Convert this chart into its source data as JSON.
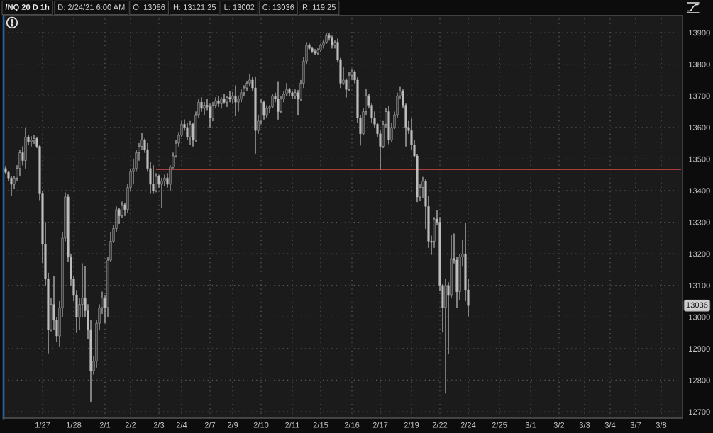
{
  "chart_data": {
    "type": "candlestick",
    "title": "/NQ 20 D 1h",
    "annotations": [
      "D: 2/24/21 6:00 AM",
      "O: 13086",
      "H: 13121.25",
      "L: 13002",
      "C: 13036",
      "R: 119.25",
      {
        "text": "13036",
        "y": 13036
      }
    ],
    "color": "#bdbdbd",
    "categories": [
      null,
      null,
      null,
      null,
      null,
      null,
      null,
      null,
      null,
      null,
      null,
      null,
      null,
      "1/27",
      null,
      null,
      null,
      null,
      null,
      null,
      null,
      null,
      null,
      null,
      "1/28",
      null,
      null,
      null,
      null,
      null,
      null,
      null,
      null,
      null,
      null,
      "2/1",
      null,
      null,
      null,
      null,
      null,
      null,
      null,
      null,
      "2/2",
      null,
      null,
      null,
      null,
      null,
      null,
      null,
      null,
      null,
      "2/3",
      null,
      null,
      null,
      null,
      null,
      null,
      null,
      "2/4",
      null,
      null,
      null,
      null,
      null,
      null,
      null,
      null,
      null,
      "2/7",
      null,
      null,
      null,
      null,
      null,
      null,
      null,
      "2/9",
      null,
      null,
      null,
      null,
      null,
      null,
      null,
      null,
      null,
      "2/10",
      null,
      null,
      null,
      null,
      null,
      null,
      null,
      null,
      null,
      null,
      "2/11",
      null,
      null,
      null,
      null,
      null,
      null,
      null,
      null,
      null,
      "2/15",
      null,
      null,
      null,
      null,
      null,
      null,
      null,
      null,
      null,
      null,
      "2/16",
      null,
      null,
      null,
      null,
      null,
      null,
      null,
      null,
      null,
      "2/17",
      null,
      null,
      null,
      null,
      null,
      null,
      null,
      null,
      null,
      null,
      "2/19",
      null,
      null,
      null,
      null,
      null,
      null,
      null,
      null,
      null,
      "2/22",
      null,
      null,
      null,
      null,
      null,
      null,
      null,
      null,
      null,
      "2/24",
      null,
      null,
      null,
      null,
      null,
      null,
      null,
      null,
      null,
      null,
      "2/25",
      null,
      null,
      null,
      null,
      null,
      null,
      null,
      null,
      null,
      null,
      "3/1",
      null,
      null,
      null,
      null,
      null,
      null,
      null,
      null,
      null,
      "3/2",
      null,
      null,
      null,
      null,
      null,
      null,
      null,
      null,
      "3/3",
      null,
      null,
      null,
      null,
      null,
      null,
      null,
      null,
      "3/4",
      null,
      null,
      null,
      null,
      null,
      null,
      null,
      null,
      "3/7",
      null,
      null,
      null,
      null,
      null,
      null,
      null,
      null,
      "3/8",
      null,
      null,
      null,
      null,
      null,
      null,
      null
    ],
    "ohlc": [
      [
        13470,
        13478,
        13452,
        13458
      ],
      [
        13458,
        13462,
        13430,
        13440
      ],
      [
        13440,
        13445,
        13383,
        13420
      ],
      [
        13420,
        13445,
        13405,
        13440
      ],
      [
        13440,
        13480,
        13430,
        13470
      ],
      [
        13470,
        13530,
        13445,
        13520
      ],
      [
        13520,
        13540,
        13480,
        13495
      ],
      [
        13495,
        13600,
        13470,
        13570
      ],
      [
        13570,
        13575,
        13545,
        13555
      ],
      [
        13555,
        13572,
        13540,
        13560
      ],
      [
        13560,
        13575,
        13548,
        13565
      ],
      [
        13565,
        13570,
        13535,
        13540
      ],
      [
        13540,
        13545,
        13370,
        13390
      ],
      [
        13390,
        13398,
        13171,
        13230
      ],
      [
        13230,
        13300,
        13100,
        13120
      ],
      [
        13120,
        13140,
        12885,
        12960
      ],
      [
        12960,
        13060,
        12955,
        13040
      ],
      [
        13040,
        13130,
        12960,
        12990
      ],
      [
        12990,
        13000,
        12920,
        12940
      ],
      [
        12940,
        13050,
        12907,
        13030
      ],
      [
        13030,
        13270,
        13000,
        13250
      ],
      [
        13250,
        13394,
        13240,
        13380
      ],
      [
        13380,
        13388,
        13175,
        13190
      ],
      [
        13190,
        13200,
        13100,
        13120
      ],
      [
        13120,
        13130,
        13050,
        13070
      ],
      [
        13070,
        13085,
        12950,
        13000
      ],
      [
        13000,
        13060,
        12960,
        13040
      ],
      [
        13040,
        13170,
        13000,
        13060
      ],
      [
        13060,
        13160,
        13000,
        13020
      ],
      [
        13020,
        13040,
        12930,
        12960
      ],
      [
        12960,
        12990,
        12732,
        12830
      ],
      [
        12830,
        12877,
        12818,
        12860
      ],
      [
        12860,
        12990,
        12840,
        12980
      ],
      [
        12980,
        13040,
        12960,
        13030
      ],
      [
        13030,
        13080,
        13010,
        13060
      ],
      [
        13060,
        13070,
        12980,
        13030
      ],
      [
        13030,
        13190,
        13000,
        13180
      ],
      [
        13180,
        13270,
        13175,
        13240
      ],
      [
        13240,
        13290,
        13235,
        13280
      ],
      [
        13280,
        13350,
        13270,
        13340
      ],
      [
        13340,
        13345,
        13295,
        13320
      ],
      [
        13320,
        13365,
        13315,
        13355
      ],
      [
        13355,
        13360,
        13320,
        13340
      ],
      [
        13340,
        13420,
        13330,
        13410
      ],
      [
        13410,
        13470,
        13400,
        13460
      ],
      [
        13460,
        13500,
        13420,
        13470
      ],
      [
        13470,
        13530,
        13460,
        13520
      ],
      [
        13520,
        13550,
        13495,
        13540
      ],
      [
        13540,
        13582,
        13530,
        13560
      ],
      [
        13560,
        13565,
        13520,
        13530
      ],
      [
        13530,
        13550,
        13460,
        13470
      ],
      [
        13470,
        13490,
        13390,
        13420
      ],
      [
        13420,
        13480,
        13390,
        13400
      ],
      [
        13400,
        13455,
        13395,
        13445
      ],
      [
        13445,
        13450,
        13410,
        13420
      ],
      [
        13420,
        13440,
        13346,
        13430
      ],
      [
        13430,
        13450,
        13415,
        13440
      ],
      [
        13440,
        13455,
        13410,
        13420
      ],
      [
        13420,
        13480,
        13400,
        13475
      ],
      [
        13475,
        13520,
        13470,
        13510
      ],
      [
        13510,
        13560,
        13505,
        13550
      ],
      [
        13550,
        13585,
        13540,
        13575
      ],
      [
        13575,
        13620,
        13570,
        13610
      ],
      [
        13610,
        13625,
        13590,
        13600
      ],
      [
        13600,
        13615,
        13560,
        13570
      ],
      [
        13570,
        13620,
        13545,
        13610
      ],
      [
        13610,
        13615,
        13540,
        13560
      ],
      [
        13560,
        13650,
        13555,
        13640
      ],
      [
        13640,
        13690,
        13630,
        13680
      ],
      [
        13680,
        13695,
        13650,
        13660
      ],
      [
        13660,
        13680,
        13640,
        13670
      ],
      [
        13670,
        13690,
        13655,
        13665
      ],
      [
        13665,
        13675,
        13600,
        13630
      ],
      [
        13630,
        13680,
        13620,
        13670
      ],
      [
        13670,
        13695,
        13660,
        13685
      ],
      [
        13685,
        13700,
        13665,
        13675
      ],
      [
        13675,
        13695,
        13660,
        13690
      ],
      [
        13690,
        13705,
        13675,
        13680
      ],
      [
        13680,
        13700,
        13665,
        13695
      ],
      [
        13695,
        13715,
        13680,
        13690
      ],
      [
        13690,
        13712,
        13675,
        13700
      ],
      [
        13700,
        13733,
        13636,
        13680
      ],
      [
        13680,
        13700,
        13650,
        13690
      ],
      [
        13690,
        13720,
        13680,
        13710
      ],
      [
        13710,
        13733,
        13700,
        13725
      ],
      [
        13725,
        13747,
        13715,
        13740
      ],
      [
        13740,
        13768,
        13730,
        13750
      ],
      [
        13750,
        13760,
        13715,
        13725
      ],
      [
        13725,
        13761,
        13517,
        13590
      ],
      [
        13590,
        13640,
        13580,
        13620
      ],
      [
        13620,
        13690,
        13610,
        13680
      ],
      [
        13680,
        13685,
        13625,
        13640
      ],
      [
        13640,
        13670,
        13630,
        13660
      ],
      [
        13660,
        13670,
        13645,
        13665
      ],
      [
        13665,
        13705,
        13660,
        13700
      ],
      [
        13700,
        13710,
        13680,
        13690
      ],
      [
        13690,
        13744,
        13625,
        13650
      ],
      [
        13650,
        13700,
        13645,
        13690
      ],
      [
        13690,
        13715,
        13680,
        13705
      ],
      [
        13705,
        13740,
        13700,
        13720
      ],
      [
        13720,
        13725,
        13700,
        13710
      ],
      [
        13710,
        13715,
        13690,
        13700
      ],
      [
        13700,
        13720,
        13690,
        13710
      ],
      [
        13710,
        13718,
        13640,
        13690
      ],
      [
        13690,
        13750,
        13685,
        13740
      ],
      [
        13740,
        13822,
        13725,
        13810
      ],
      [
        13810,
        13870,
        13800,
        13860
      ],
      [
        13860,
        13866,
        13845,
        13850
      ],
      [
        13850,
        13855,
        13836,
        13840
      ],
      [
        13840,
        13848,
        13830,
        13835
      ],
      [
        13835,
        13850,
        13830,
        13845
      ],
      [
        13845,
        13865,
        13840,
        13860
      ],
      [
        13860,
        13878,
        13850,
        13870
      ],
      [
        13870,
        13898,
        13865,
        13890
      ],
      [
        13890,
        13900,
        13875,
        13885
      ],
      [
        13885,
        13890,
        13850,
        13860
      ],
      [
        13860,
        13875,
        13850,
        13870
      ],
      [
        13870,
        13881,
        13807,
        13815
      ],
      [
        13815,
        13820,
        13725,
        13740
      ],
      [
        13740,
        13790,
        13735,
        13750
      ],
      [
        13750,
        13755,
        13695,
        13720
      ],
      [
        13720,
        13775,
        13715,
        13765
      ],
      [
        13765,
        13785,
        13750,
        13775
      ],
      [
        13775,
        13780,
        13740,
        13750
      ],
      [
        13750,
        13760,
        13614,
        13630
      ],
      [
        13630,
        13640,
        13543,
        13580
      ],
      [
        13580,
        13660,
        13575,
        13650
      ],
      [
        13650,
        13721,
        13640,
        13700
      ],
      [
        13700,
        13705,
        13660,
        13670
      ],
      [
        13670,
        13675,
        13614,
        13630
      ],
      [
        13630,
        13650,
        13600,
        13610
      ],
      [
        13610,
        13615,
        13569,
        13580
      ],
      [
        13580,
        13590,
        13466,
        13540
      ],
      [
        13540,
        13620,
        13535,
        13610
      ],
      [
        13610,
        13660,
        13600,
        13650
      ],
      [
        13650,
        13669,
        13547,
        13560
      ],
      [
        13560,
        13615,
        13555,
        13600
      ],
      [
        13600,
        13650,
        13595,
        13640
      ],
      [
        13640,
        13710,
        13630,
        13700
      ],
      [
        13700,
        13728,
        13690,
        13715
      ],
      [
        13715,
        13720,
        13660,
        13670
      ],
      [
        13670,
        13675,
        13540,
        13600
      ],
      [
        13600,
        13620,
        13580,
        13590
      ],
      [
        13590,
        13630,
        13530,
        13545
      ],
      [
        13545,
        13560,
        13505,
        13510
      ],
      [
        13510,
        13515,
        13364,
        13380
      ],
      [
        13380,
        13420,
        13368,
        13410
      ],
      [
        13410,
        13443,
        13376,
        13430
      ],
      [
        13430,
        13435,
        13279,
        13350
      ],
      [
        13350,
        13383,
        13219,
        13240
      ],
      [
        13240,
        13257,
        13197,
        13236
      ],
      [
        13240,
        13316,
        13219,
        13310
      ],
      [
        13310,
        13338,
        13290,
        13300
      ],
      [
        13300,
        13316,
        13082,
        13100
      ],
      [
        13100,
        13104,
        12951,
        13030
      ],
      [
        13030,
        13120,
        12758,
        13100
      ],
      [
        13100,
        13110,
        12884,
        13070
      ],
      [
        13070,
        13260,
        13060,
        13185
      ],
      [
        13185,
        13264,
        13170,
        13180
      ],
      [
        13180,
        13190,
        13029,
        13080
      ],
      [
        13080,
        13200,
        13055,
        13190
      ],
      [
        13190,
        13245,
        13160,
        13200
      ],
      [
        13200,
        13297,
        13050,
        13086
      ],
      [
        13086,
        13121.25,
        13002,
        13036
      ],
      null,
      null,
      null,
      null,
      null,
      null,
      null,
      null,
      null,
      null,
      null,
      null,
      null,
      null,
      null,
      null,
      null,
      null,
      null,
      null,
      null,
      null,
      null,
      null,
      null,
      null,
      null,
      null,
      null,
      null,
      null,
      null,
      null,
      null,
      null,
      null,
      null,
      null,
      null,
      null,
      null,
      null,
      null,
      null,
      null,
      null,
      null,
      null,
      null,
      null,
      null,
      null,
      null,
      null,
      null,
      null,
      null,
      null,
      null,
      null,
      null,
      null,
      null,
      null,
      null,
      null,
      null,
      null,
      null,
      null,
      null,
      null,
      null,
      null,
      null
    ],
    "series": [
      {
        "type": "line",
        "color": "#d84a44",
        "values": [
          null,
          null,
          null,
          null,
          null,
          null,
          null,
          null,
          null,
          null,
          null,
          null,
          null,
          null,
          null,
          null,
          null,
          null,
          null,
          null,
          null,
          null,
          null,
          null,
          null,
          null,
          null,
          null,
          null,
          null,
          null,
          null,
          null,
          null,
          null,
          null,
          null,
          null,
          null,
          null,
          null,
          null,
          null,
          null,
          null,
          null,
          null,
          null,
          null,
          null,
          null,
          null,
          null,
          13467,
          13467,
          13467,
          13467,
          13467,
          13467,
          13467,
          13467,
          13467,
          13467,
          13467,
          13467,
          13467,
          13467,
          13467,
          13467,
          13467,
          13467,
          13467,
          13467,
          13467,
          13467,
          13467,
          13467,
          13467,
          13467,
          13467,
          13467,
          13467,
          13467,
          13467,
          13467,
          13467,
          13467,
          13467,
          13467,
          13467,
          13467,
          13467,
          13467,
          13467,
          13467,
          13467,
          13467,
          13467,
          13467,
          13467,
          13467,
          13467,
          13467,
          13467,
          13467,
          13467,
          13467,
          13467,
          13467,
          13467,
          13467,
          13467,
          13467,
          13467,
          13467,
          13467,
          13467,
          13467,
          13467,
          13467,
          13467,
          13467,
          13467,
          13467,
          13467,
          13467,
          13467,
          13467,
          13467,
          13467,
          13467,
          13467,
          13467,
          13467,
          13467,
          13467,
          13467,
          13467,
          13467,
          13467,
          13467,
          13467,
          13467,
          13467,
          13467,
          13467,
          13467,
          13467,
          13467,
          13467,
          13467,
          13467,
          13467,
          13467,
          13467,
          13467,
          13467,
          13467,
          13467,
          13467,
          13467,
          13467,
          13467,
          13467,
          13467,
          13467,
          13467,
          13467,
          13467,
          13467,
          13467,
          13467,
          13467,
          13467,
          13467,
          13467,
          13467,
          13467,
          13467,
          13467,
          13467,
          13467,
          13467,
          13467,
          13467,
          13467,
          13467,
          13467,
          13467,
          13467,
          13467,
          13467,
          13467,
          13467,
          13467,
          13467,
          13467,
          13467,
          13467,
          13467,
          13467,
          13467,
          13467,
          13467,
          13467,
          13467,
          13467,
          13467,
          13467,
          13467,
          13467,
          13467,
          13467,
          13467,
          13467,
          13467,
          13467,
          13467,
          13467,
          13467,
          13467,
          13467,
          13467,
          13467,
          13467,
          13467,
          13467,
          13467,
          13467,
          13467,
          13467,
          13467,
          13467,
          13467,
          13467,
          13467,
          13467,
          13467,
          13467
        ]
      }
    ],
    "ylim": [
      12680,
      13954
    ],
    "yticks": [
      12700,
      12800,
      12900,
      13000,
      13100,
      13200,
      13300,
      13400,
      13500,
      13600,
      13700,
      13800,
      13900
    ],
    "grid": true
  }
}
